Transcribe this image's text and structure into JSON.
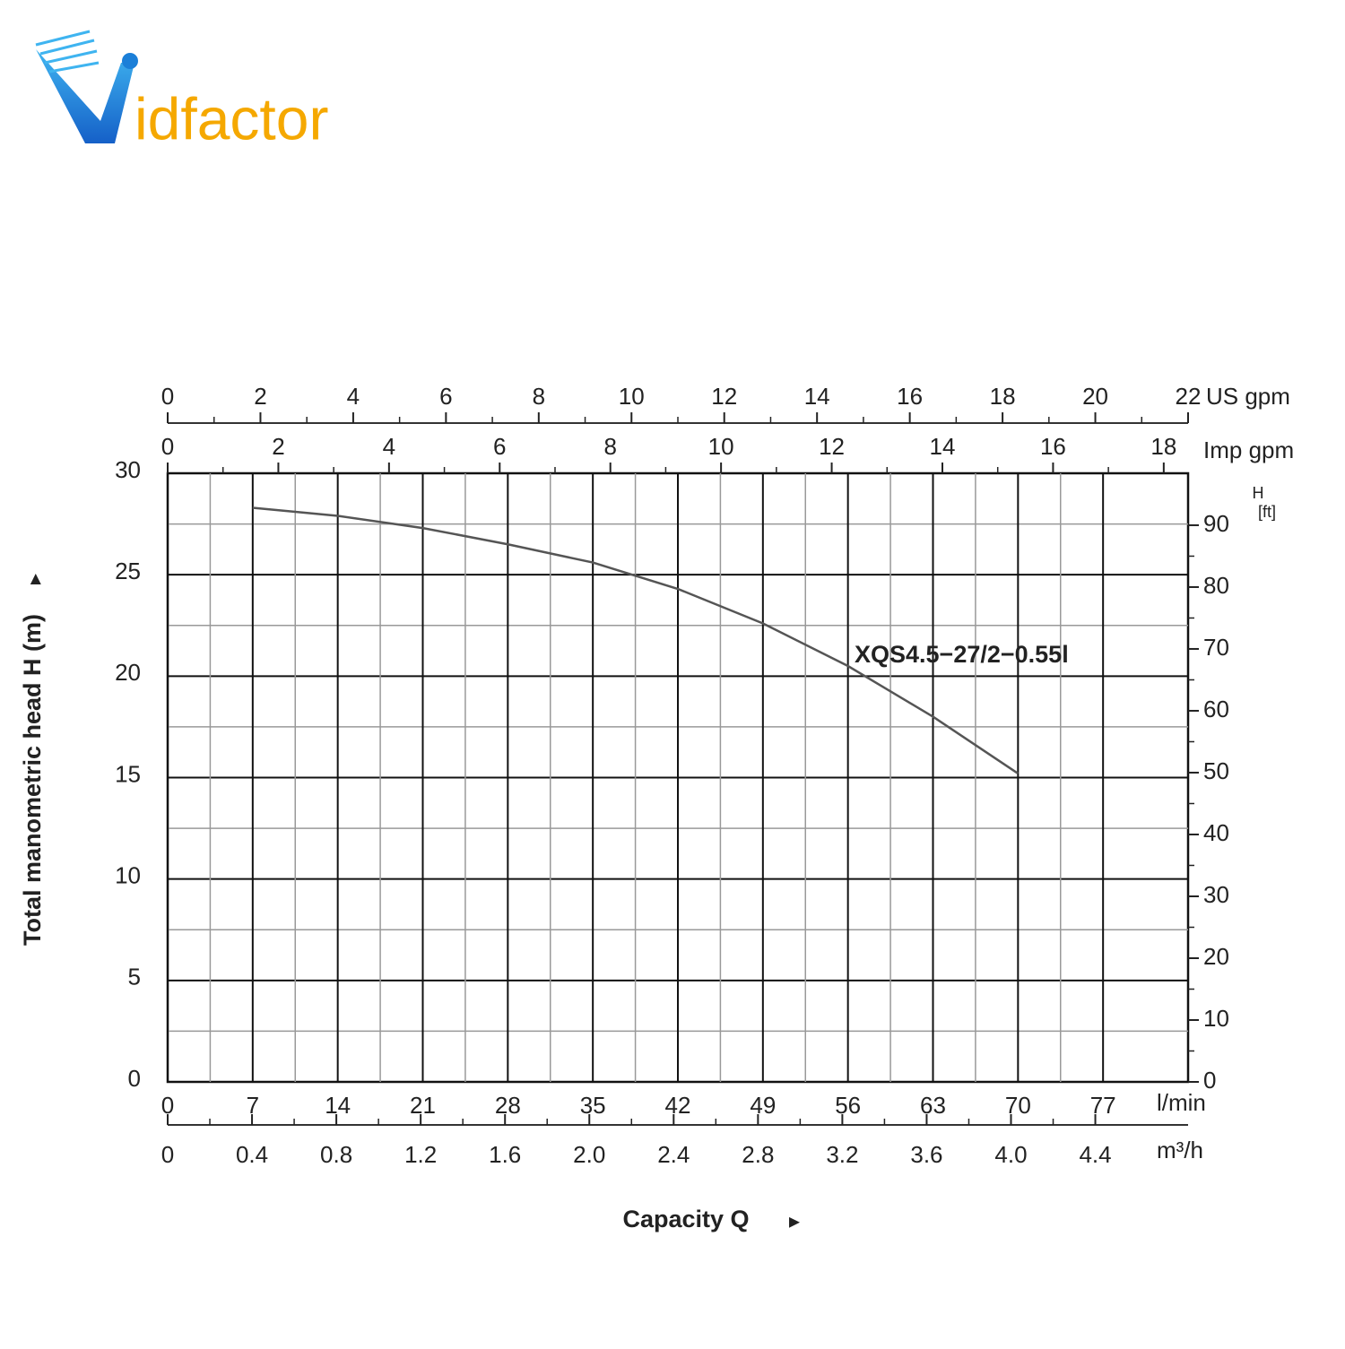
{
  "logo": "idfactor",
  "chart_data": {
    "type": "line",
    "x_label": "Capacity Q",
    "y_label": "Total manometric head H (m)",
    "x": [
      7,
      14,
      21,
      28,
      35,
      42,
      49,
      56,
      63,
      70
    ],
    "series": [
      {
        "name": "XQS4.5−27/2−0.55l",
        "color": "#555555",
        "values": [
          28.3,
          27.9,
          27.3,
          26.5,
          25.6,
          24.3,
          22.6,
          20.5,
          18.0,
          15.2
        ]
      }
    ],
    "x_unit": "l/min",
    "xlim": [
      0,
      84
    ],
    "xticks": [
      0,
      7,
      14,
      21,
      28,
      35,
      42,
      49,
      56,
      63,
      70,
      77
    ],
    "ylim": [
      0,
      30
    ],
    "yticks": [
      0,
      5,
      10,
      15,
      20,
      25,
      30
    ],
    "y2_label": "H",
    "y2_unit": "[ft]",
    "y2lim": [
      0,
      98.4
    ],
    "y2ticks": [
      0,
      10,
      20,
      30,
      40,
      50,
      60,
      70,
      80,
      90
    ],
    "grid": true,
    "extra_x_axes": [
      {
        "position": "bottom",
        "unit": "m³/h",
        "xlim": [
          0,
          4.84
        ],
        "xticks": [
          0,
          0.4,
          0.8,
          1.2,
          1.6,
          {
            "value": 2,
            "label": "2.0"
          },
          2.4,
          2.8,
          3.2,
          3.6,
          {
            "value": 4,
            "label": "4.0"
          },
          4.4
        ]
      },
      {
        "position": "top",
        "unit": "US gpm",
        "xlim": [
          0,
          22
        ],
        "xticks": [
          0,
          2,
          4,
          6,
          8,
          10,
          12,
          14,
          16,
          18,
          20,
          22
        ]
      },
      {
        "position": "top-inner",
        "unit": "Imp gpm",
        "xlim": [
          0,
          18.44
        ],
        "xticks": [
          0,
          2,
          4,
          6,
          8,
          10,
          12,
          14,
          16,
          18
        ]
      }
    ]
  }
}
